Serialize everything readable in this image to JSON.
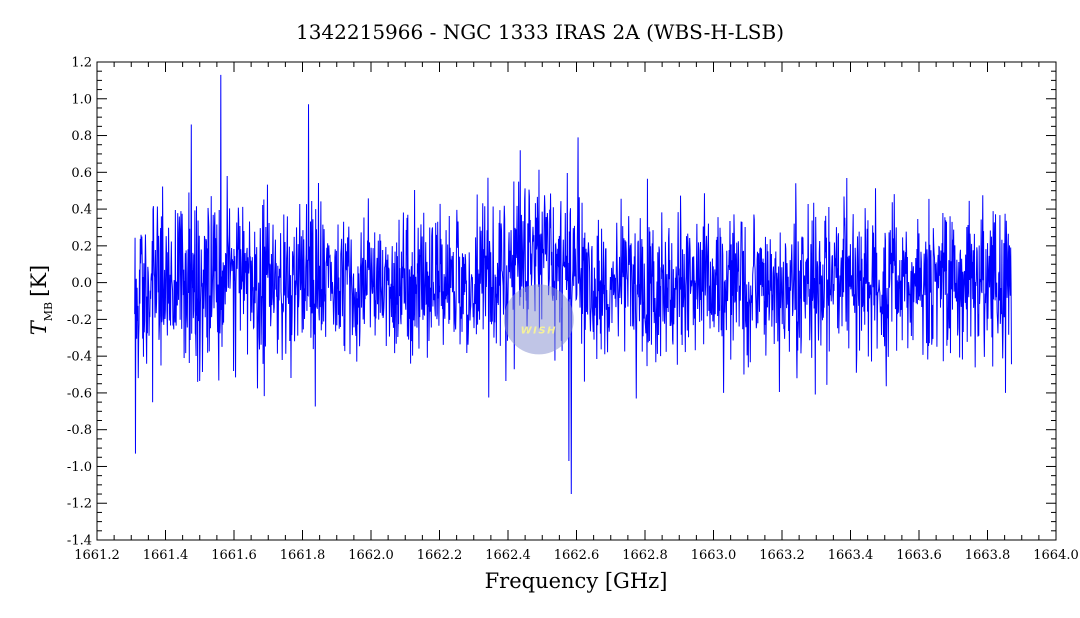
{
  "chart_data": {
    "type": "line",
    "title": "1342215966 - NGC 1333 IRAS 2A (WBS-H-LSB)",
    "xlabel": "Frequency [GHz]",
    "ylabel_main": "T",
    "ylabel_sub": "MB",
    "ylabel_unit": "[K]",
    "xlim": [
      1661.2,
      1664.0
    ],
    "ylim": [
      -1.4,
      1.2
    ],
    "x_ticks": [
      1661.2,
      1661.4,
      1661.6,
      1661.8,
      1662.0,
      1662.2,
      1662.4,
      1662.6,
      1662.8,
      1663.0,
      1663.2,
      1663.4,
      1663.6,
      1663.8,
      1664.0
    ],
    "x_tick_labels": [
      "1661.2",
      "1661.4",
      "1661.6",
      "1661.8",
      "1662.0",
      "1662.2",
      "1662.4",
      "1662.6",
      "1662.8",
      "1663.0",
      "1663.2",
      "1663.4",
      "1663.6",
      "1663.8",
      "1664.0"
    ],
    "y_ticks": [
      -1.4,
      -1.2,
      -1.0,
      -0.8,
      -0.6,
      -0.4,
      -0.2,
      0.0,
      0.2,
      0.4,
      0.6,
      0.8,
      1.0,
      1.2
    ],
    "y_tick_labels": [
      "-1.4",
      "-1.2",
      "-1.0",
      "-0.8",
      "-0.6",
      "-0.4",
      "-0.2",
      "0.0",
      "0.2",
      "0.4",
      "0.6",
      "0.8",
      "1.0",
      "1.2"
    ],
    "grid": false,
    "series_color": "#0000ff",
    "x_range_data": [
      1661.31,
      1663.87
    ],
    "features": [
      {
        "x": 1661.312,
        "y": -0.93
      },
      {
        "x": 1661.562,
        "y": 1.13
      },
      {
        "x": 1661.475,
        "y": 0.86
      },
      {
        "x": 1661.818,
        "y": 0.97
      },
      {
        "x": 1662.585,
        "y": -1.15
      },
      {
        "x": 1662.578,
        "y": -0.97
      },
      {
        "x": 1662.605,
        "y": 0.79
      },
      {
        "x": 1663.03,
        "y": -0.6
      }
    ],
    "broad_feature": {
      "center": 1662.49,
      "width": 0.09,
      "amplitude": 0.18
    },
    "noise_rms": 0.2,
    "logo_text": "WISH",
    "logo_color": "#8c96d2"
  }
}
